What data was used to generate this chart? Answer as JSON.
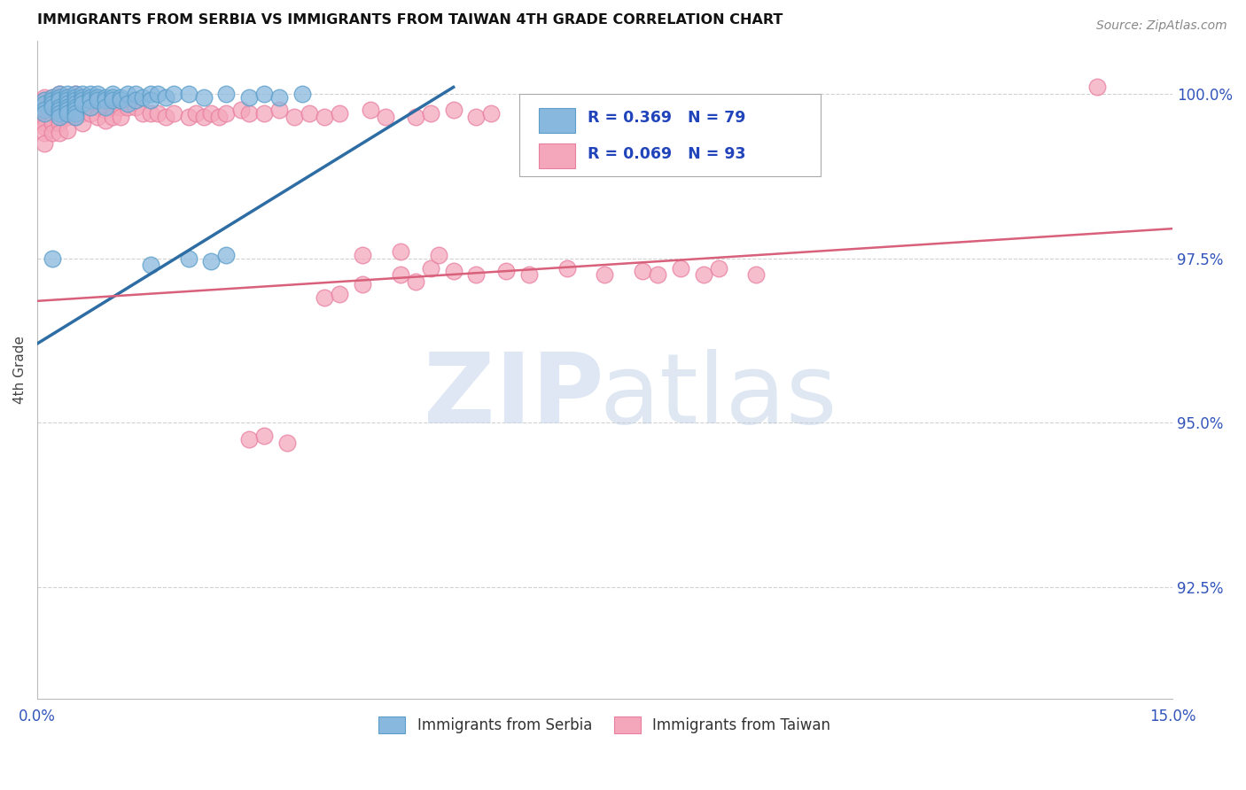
{
  "title": "IMMIGRANTS FROM SERBIA VS IMMIGRANTS FROM TAIWAN 4TH GRADE CORRELATION CHART",
  "source": "Source: ZipAtlas.com",
  "ylabel": "4th Grade",
  "xmin": 0.0,
  "xmax": 0.15,
  "ymin": 0.908,
  "ymax": 1.008,
  "serbia_color": "#89b8de",
  "taiwan_color": "#f4a7bb",
  "serbia_edge": "#5a9ec9",
  "taiwan_edge": "#e87fa0",
  "blue_line_color": "#2e6da4",
  "pink_line_color": "#d9607a",
  "serbia_line": [
    [
      0.0,
      0.962
    ],
    [
      0.055,
      1.001
    ]
  ],
  "taiwan_line": [
    [
      0.0,
      0.9685
    ],
    [
      0.15,
      0.9795
    ]
  ],
  "yticks": [
    0.925,
    0.95,
    0.975,
    1.0
  ],
  "ytick_labels": [
    "92.5%",
    "95.0%",
    "97.5%",
    "100.0%"
  ],
  "serbia_points": [
    [
      0.001,
      0.999
    ],
    [
      0.001,
      0.9985
    ],
    [
      0.001,
      0.9975
    ],
    [
      0.001,
      0.997
    ],
    [
      0.002,
      0.9995
    ],
    [
      0.002,
      0.999
    ],
    [
      0.002,
      0.9985
    ],
    [
      0.002,
      0.998
    ],
    [
      0.003,
      1.0
    ],
    [
      0.003,
      0.9995
    ],
    [
      0.003,
      0.999
    ],
    [
      0.003,
      0.998
    ],
    [
      0.003,
      0.9975
    ],
    [
      0.003,
      0.997
    ],
    [
      0.003,
      0.9965
    ],
    [
      0.004,
      1.0
    ],
    [
      0.004,
      0.9995
    ],
    [
      0.004,
      0.999
    ],
    [
      0.004,
      0.9985
    ],
    [
      0.004,
      0.998
    ],
    [
      0.004,
      0.9975
    ],
    [
      0.004,
      0.997
    ],
    [
      0.005,
      1.0
    ],
    [
      0.005,
      0.9995
    ],
    [
      0.005,
      0.999
    ],
    [
      0.005,
      0.9985
    ],
    [
      0.005,
      0.998
    ],
    [
      0.005,
      0.9975
    ],
    [
      0.005,
      0.997
    ],
    [
      0.005,
      0.9965
    ],
    [
      0.006,
      1.0
    ],
    [
      0.006,
      0.9995
    ],
    [
      0.006,
      0.999
    ],
    [
      0.006,
      0.9985
    ],
    [
      0.007,
      1.0
    ],
    [
      0.007,
      0.9995
    ],
    [
      0.007,
      0.999
    ],
    [
      0.007,
      0.998
    ],
    [
      0.008,
      1.0
    ],
    [
      0.008,
      0.9995
    ],
    [
      0.008,
      0.999
    ],
    [
      0.009,
      0.9995
    ],
    [
      0.009,
      0.999
    ],
    [
      0.009,
      0.998
    ],
    [
      0.01,
      1.0
    ],
    [
      0.01,
      0.9995
    ],
    [
      0.01,
      0.999
    ],
    [
      0.011,
      0.9995
    ],
    [
      0.011,
      0.999
    ],
    [
      0.012,
      1.0
    ],
    [
      0.012,
      0.9985
    ],
    [
      0.013,
      1.0
    ],
    [
      0.013,
      0.999
    ],
    [
      0.014,
      0.9995
    ],
    [
      0.015,
      1.0
    ],
    [
      0.015,
      0.999
    ],
    [
      0.016,
      1.0
    ],
    [
      0.017,
      0.9995
    ],
    [
      0.018,
      1.0
    ],
    [
      0.02,
      1.0
    ],
    [
      0.022,
      0.9995
    ],
    [
      0.025,
      1.0
    ],
    [
      0.028,
      0.9995
    ],
    [
      0.03,
      1.0
    ],
    [
      0.032,
      0.9995
    ],
    [
      0.035,
      1.0
    ],
    [
      0.002,
      0.975
    ],
    [
      0.015,
      0.974
    ],
    [
      0.02,
      0.975
    ],
    [
      0.023,
      0.9745
    ],
    [
      0.025,
      0.9755
    ]
  ],
  "taiwan_points": [
    [
      0.001,
      0.9995
    ],
    [
      0.001,
      0.999
    ],
    [
      0.001,
      0.998
    ],
    [
      0.001,
      0.997
    ],
    [
      0.001,
      0.9965
    ],
    [
      0.001,
      0.996
    ],
    [
      0.001,
      0.9955
    ],
    [
      0.001,
      0.995
    ],
    [
      0.001,
      0.994
    ],
    [
      0.001,
      0.9925
    ],
    [
      0.002,
      0.9995
    ],
    [
      0.002,
      0.999
    ],
    [
      0.002,
      0.998
    ],
    [
      0.002,
      0.997
    ],
    [
      0.002,
      0.996
    ],
    [
      0.002,
      0.9955
    ],
    [
      0.002,
      0.994
    ],
    [
      0.003,
      1.0
    ],
    [
      0.003,
      0.9995
    ],
    [
      0.003,
      0.999
    ],
    [
      0.003,
      0.998
    ],
    [
      0.003,
      0.997
    ],
    [
      0.003,
      0.996
    ],
    [
      0.003,
      0.9955
    ],
    [
      0.003,
      0.994
    ],
    [
      0.004,
      0.9995
    ],
    [
      0.004,
      0.999
    ],
    [
      0.004,
      0.998
    ],
    [
      0.004,
      0.997
    ],
    [
      0.004,
      0.9965
    ],
    [
      0.004,
      0.9945
    ],
    [
      0.005,
      1.0
    ],
    [
      0.005,
      0.999
    ],
    [
      0.005,
      0.998
    ],
    [
      0.005,
      0.9965
    ],
    [
      0.006,
      0.9985
    ],
    [
      0.006,
      0.998
    ],
    [
      0.006,
      0.997
    ],
    [
      0.006,
      0.9955
    ],
    [
      0.007,
      0.9985
    ],
    [
      0.007,
      0.998
    ],
    [
      0.007,
      0.997
    ],
    [
      0.008,
      0.9985
    ],
    [
      0.008,
      0.998
    ],
    [
      0.008,
      0.9965
    ],
    [
      0.009,
      0.9985
    ],
    [
      0.009,
      0.9975
    ],
    [
      0.009,
      0.996
    ],
    [
      0.01,
      0.9985
    ],
    [
      0.01,
      0.998
    ],
    [
      0.01,
      0.9965
    ],
    [
      0.011,
      0.998
    ],
    [
      0.011,
      0.9965
    ],
    [
      0.012,
      0.998
    ],
    [
      0.013,
      0.998
    ],
    [
      0.014,
      0.997
    ],
    [
      0.015,
      0.997
    ],
    [
      0.016,
      0.997
    ],
    [
      0.017,
      0.9965
    ],
    [
      0.018,
      0.997
    ],
    [
      0.02,
      0.9965
    ],
    [
      0.021,
      0.997
    ],
    [
      0.022,
      0.9965
    ],
    [
      0.023,
      0.997
    ],
    [
      0.024,
      0.9965
    ],
    [
      0.025,
      0.997
    ],
    [
      0.027,
      0.9975
    ],
    [
      0.028,
      0.997
    ],
    [
      0.03,
      0.997
    ],
    [
      0.032,
      0.9975
    ],
    [
      0.034,
      0.9965
    ],
    [
      0.036,
      0.997
    ],
    [
      0.038,
      0.9965
    ],
    [
      0.04,
      0.997
    ],
    [
      0.044,
      0.9975
    ],
    [
      0.046,
      0.9965
    ],
    [
      0.05,
      0.9965
    ],
    [
      0.052,
      0.997
    ],
    [
      0.055,
      0.9975
    ],
    [
      0.058,
      0.9965
    ],
    [
      0.06,
      0.997
    ],
    [
      0.065,
      0.9965
    ],
    [
      0.07,
      0.997
    ],
    [
      0.08,
      0.998
    ],
    [
      0.09,
      0.9985
    ],
    [
      0.048,
      0.9725
    ],
    [
      0.052,
      0.9735
    ],
    [
      0.055,
      0.973
    ],
    [
      0.058,
      0.9725
    ],
    [
      0.062,
      0.973
    ],
    [
      0.065,
      0.9725
    ],
    [
      0.07,
      0.9735
    ],
    [
      0.075,
      0.9725
    ],
    [
      0.08,
      0.973
    ],
    [
      0.082,
      0.9725
    ],
    [
      0.085,
      0.9735
    ],
    [
      0.088,
      0.9725
    ],
    [
      0.09,
      0.9735
    ],
    [
      0.095,
      0.9725
    ],
    [
      0.043,
      0.9755
    ],
    [
      0.048,
      0.976
    ],
    [
      0.053,
      0.9755
    ],
    [
      0.043,
      0.971
    ],
    [
      0.05,
      0.9715
    ],
    [
      0.038,
      0.969
    ],
    [
      0.04,
      0.9695
    ],
    [
      0.028,
      0.9475
    ],
    [
      0.03,
      0.948
    ],
    [
      0.033,
      0.947
    ],
    [
      0.14,
      1.001
    ]
  ]
}
